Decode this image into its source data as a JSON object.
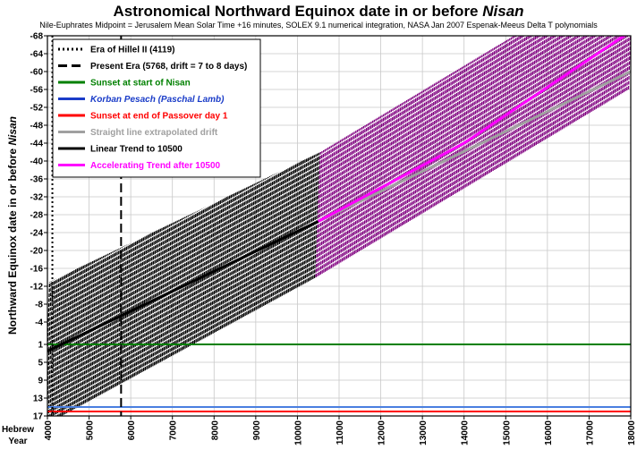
{
  "chart_data": {
    "type": "line",
    "title_main": "Astronomical Northward Equinox date in or before ",
    "title_emph": "Nisan",
    "subtitle": "Nile-Euphrates Midpoint = Jerusalem Mean Solar Time +16 minutes, SOLEX 9.1 numerical integration, NASA Jan 2007 Espenak-Meeus Delta T polynomials",
    "ylabel_main": "Northward Equinox date in or before ",
    "ylabel_emph": "Nisan",
    "xlabel_line1": "Hebrew",
    "xlabel_line2": "Year",
    "xlim": [
      4000,
      18000
    ],
    "ylim": [
      17,
      -68
    ],
    "grid": true,
    "legend_position": "top-left",
    "x_ticks": [
      "4000",
      "5000",
      "6000",
      "7000",
      "8000",
      "9000",
      "10000",
      "11000",
      "12000",
      "13000",
      "14000",
      "15000",
      "16000",
      "17000",
      "18000"
    ],
    "y_ticks": [
      "-68",
      "-64",
      "-60",
      "-56",
      "-52",
      "-48",
      "-44",
      "-40",
      "-36",
      "-32",
      "-28",
      "-24",
      "-20",
      "-16",
      "-12",
      "-8",
      "-4",
      "1",
      "5",
      "9",
      "13",
      "17"
    ],
    "legend": [
      {
        "label": "Era of Hillel II (4119)",
        "color": "#000000",
        "style": "dotted",
        "italic": false
      },
      {
        "label": "Present Era (5768, drift = 7 to 8 days)",
        "color": "#000000",
        "style": "dashed",
        "italic": false
      },
      {
        "label": "Sunset at start of Nisan",
        "color": "#008000",
        "style": "solid",
        "italic": false
      },
      {
        "label": "Korban Pesach (Paschal Lamb)",
        "color": "#1a3cc8",
        "style": "solid",
        "italic": true
      },
      {
        "label": "Sunset at end of Passover day 1",
        "color": "#ff0000",
        "style": "solid",
        "italic": false
      },
      {
        "label": "Straight line extrapolated drift",
        "color": "#a0a0a0",
        "style": "solid",
        "italic": false
      },
      {
        "label": "Linear Trend to 10500",
        "color": "#000000",
        "style": "solid",
        "italic": false
      },
      {
        "label": "Accelerating Trend after 10500",
        "color": "#ff00ff",
        "style": "solid",
        "italic": false
      }
    ],
    "vlines": [
      {
        "name": "Era of Hillel II",
        "x": 4119,
        "color": "#000000",
        "style": "dotted"
      },
      {
        "name": "Present Era",
        "x": 5768,
        "color": "#000000",
        "style": "dashed"
      }
    ],
    "hlines": [
      {
        "name": "Sunset at start of Nisan",
        "y": 1,
        "color": "#008000"
      },
      {
        "name": "Korban Pesach (Paschal Lamb)",
        "y": 15,
        "color": "#4a7fe0"
      },
      {
        "name": "Sunset at end of Passover day 1",
        "y": 16,
        "color": "#ff0000"
      }
    ],
    "band_series": [
      {
        "name": "Equinox dates to 10500",
        "color": "#000000",
        "x_start": 4000,
        "x_end": 10500,
        "upper": [
          [
            4000,
            -13
          ],
          [
            10500,
            -42
          ]
        ],
        "lower": [
          [
            4000,
            19
          ],
          [
            10500,
            -14
          ]
        ]
      },
      {
        "name": "Equinox dates after 10500",
        "color": "#800080",
        "x_start": 10500,
        "x_end": 18000,
        "upper": [
          [
            10500,
            -42
          ],
          [
            18000,
            -84
          ]
        ],
        "lower": [
          [
            10500,
            -14
          ],
          [
            18000,
            -56
          ]
        ]
      }
    ],
    "series": [
      {
        "name": "Straight line extrapolated drift",
        "color": "#a0a0a0",
        "x": [
          10500,
          18000
        ],
        "y": [
          -26.5,
          -60
        ]
      },
      {
        "name": "Linear Trend to 10500",
        "color": "#000000",
        "x": [
          4000,
          10500
        ],
        "y": [
          2.5,
          -26.5
        ]
      },
      {
        "name": "Accelerating Trend after 10500",
        "color": "#ff00ff",
        "x": [
          10500,
          14000,
          18000
        ],
        "y": [
          -26.5,
          -44,
          -69
        ]
      }
    ]
  }
}
